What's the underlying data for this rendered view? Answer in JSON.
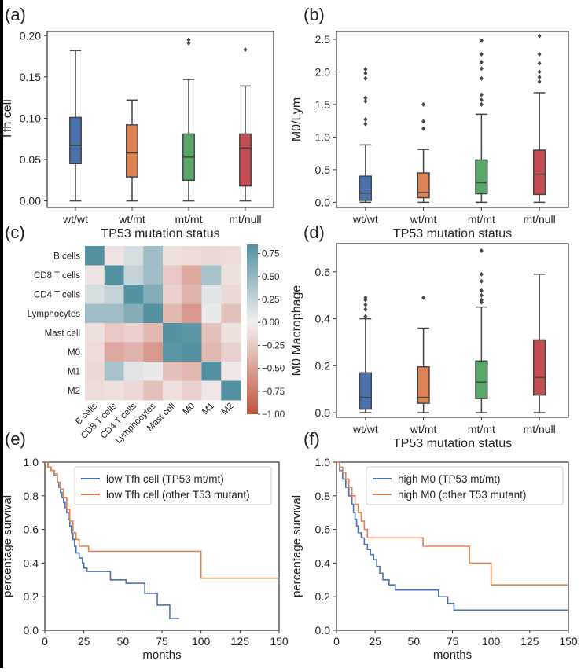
{
  "figure": {
    "panel_labels": [
      "(a)",
      "(b)",
      "(c)",
      "(d)",
      "(e)",
      "(f)"
    ],
    "colors": {
      "blue": "#4c72b0",
      "orange": "#dd8452",
      "green": "#55a868",
      "red": "#c44e52",
      "km_blue": "#4c72b0",
      "km_orange": "#dd8452"
    }
  },
  "chart_data": [
    {
      "panel": "(a)",
      "type": "box",
      "categories": [
        "wt/wt",
        "wt/mt",
        "mt/mt",
        "mt/null"
      ],
      "xlabel": "TP53 mutation status",
      "ylabel": "Tfh cell",
      "ylim": [
        -0.008,
        0.205
      ],
      "yticks": [
        0.0,
        0.05,
        0.1,
        0.15,
        0.2
      ],
      "yticklabels": [
        "0.00",
        "0.05",
        "0.10",
        "0.15",
        "0.20"
      ],
      "boxes": [
        {
          "whislo": 0.0,
          "q1": 0.045,
          "med": 0.067,
          "q3": 0.101,
          "whishi": 0.182,
          "fliers": []
        },
        {
          "whislo": 0.0,
          "q1": 0.029,
          "med": 0.058,
          "q3": 0.092,
          "whishi": 0.122,
          "fliers": []
        },
        {
          "whislo": 0.0,
          "q1": 0.025,
          "med": 0.053,
          "q3": 0.081,
          "whishi": 0.147,
          "fliers": [
            0.191,
            0.195
          ]
        },
        {
          "whislo": 0.0,
          "q1": 0.018,
          "med": 0.064,
          "q3": 0.081,
          "whishi": 0.139,
          "fliers": [
            0.183
          ]
        }
      ]
    },
    {
      "panel": "(b)",
      "type": "box",
      "categories": [
        "wt/wt",
        "wt/mt",
        "mt/mt",
        "mt/null"
      ],
      "xlabel": "TP53 mutation status",
      "ylabel": "M0/Lym",
      "ylim": [
        -0.08,
        2.62
      ],
      "yticks": [
        0.0,
        0.5,
        1.0,
        1.5,
        2.0,
        2.5
      ],
      "yticklabels": [
        "0.0",
        "0.5",
        "1.0",
        "1.5",
        "2.0",
        "2.5"
      ],
      "boxes": [
        {
          "whislo": 0.0,
          "q1": 0.03,
          "med": 0.14,
          "q3": 0.4,
          "whishi": 0.88,
          "fliers": [
            1.2,
            1.27,
            1.55,
            1.6,
            1.9,
            1.98,
            2.04
          ]
        },
        {
          "whislo": 0.0,
          "q1": 0.07,
          "med": 0.15,
          "q3": 0.45,
          "whishi": 0.81,
          "fliers": [
            1.13,
            1.24,
            1.5
          ]
        },
        {
          "whislo": 0.0,
          "q1": 0.13,
          "med": 0.3,
          "q3": 0.65,
          "whishi": 1.35,
          "fliers": [
            1.5,
            1.57,
            1.65,
            1.9,
            2.05,
            2.15,
            2.27,
            2.48
          ]
        },
        {
          "whislo": 0.0,
          "q1": 0.12,
          "med": 0.43,
          "q3": 0.8,
          "whishi": 1.68,
          "fliers": [
            1.85,
            1.92,
            2.0,
            2.13,
            2.27,
            2.55
          ]
        }
      ]
    },
    {
      "panel": "(c)",
      "type": "heatmap",
      "labels": [
        "B cells",
        "CD8 T cells",
        "CD4 T cells",
        "Lymphocytes",
        "Mast cell",
        "M0",
        "M1",
        "M2"
      ],
      "values": [
        [
          1.0,
          -0.08,
          0.15,
          0.45,
          -0.1,
          -0.12,
          -0.15,
          -0.12
        ],
        [
          -0.08,
          1.0,
          0.25,
          0.45,
          -0.25,
          -0.45,
          0.4,
          -0.1
        ],
        [
          0.15,
          0.25,
          1.0,
          0.6,
          -0.2,
          -0.38,
          0.1,
          -0.15
        ],
        [
          0.45,
          0.45,
          0.6,
          1.0,
          -0.35,
          -0.55,
          0.05,
          -0.3
        ],
        [
          -0.1,
          -0.25,
          -0.2,
          -0.35,
          1.0,
          0.8,
          -0.3,
          -0.1
        ],
        [
          -0.12,
          -0.45,
          -0.38,
          -0.55,
          0.8,
          1.0,
          -0.35,
          -0.2
        ],
        [
          -0.15,
          0.4,
          0.1,
          0.05,
          -0.3,
          -0.35,
          1.0,
          -0.05
        ],
        [
          -0.12,
          -0.1,
          -0.15,
          -0.3,
          -0.1,
          -0.2,
          -0.05,
          1.0
        ]
      ],
      "vmin": -1.0,
      "vmax": 0.85,
      "colorbar_ticks": [
        0.75,
        0.5,
        0.25,
        0.0,
        -0.25,
        -0.5,
        -0.75,
        -1.0
      ],
      "colorbar_ticklabels": [
        "0.75",
        "0.50",
        "0.25",
        "0.00",
        "−0.25",
        "−0.50",
        "−0.75",
        "−1.00"
      ]
    },
    {
      "panel": "(d)",
      "type": "box",
      "categories": [
        "wt/wt",
        "wt/mt",
        "mt/mt",
        "mt/null"
      ],
      "xlabel": "TP53 mutation status",
      "ylabel": "M0 Macrophage",
      "ylim": [
        -0.02,
        0.72
      ],
      "yticks": [
        0.0,
        0.2,
        0.4,
        0.6
      ],
      "yticklabels": [
        "0.0",
        "0.2",
        "0.4",
        "0.6"
      ],
      "boxes": [
        {
          "whislo": 0.0,
          "q1": 0.015,
          "med": 0.065,
          "q3": 0.17,
          "whishi": 0.4,
          "fliers": [
            0.41,
            0.44,
            0.46,
            0.48,
            0.49
          ]
        },
        {
          "whislo": 0.0,
          "q1": 0.04,
          "med": 0.065,
          "q3": 0.195,
          "whishi": 0.36,
          "fliers": [
            0.49
          ]
        },
        {
          "whislo": 0.0,
          "q1": 0.06,
          "med": 0.13,
          "q3": 0.22,
          "whishi": 0.45,
          "fliers": [
            0.47,
            0.48,
            0.5,
            0.52,
            0.56,
            0.59,
            0.69
          ]
        },
        {
          "whislo": 0.0,
          "q1": 0.075,
          "med": 0.15,
          "q3": 0.31,
          "whishi": 0.59,
          "fliers": []
        }
      ]
    },
    {
      "panel": "(e)",
      "type": "line",
      "xlabel": "months",
      "ylabel": "percentage survival",
      "xlim": [
        0,
        150
      ],
      "ylim": [
        0.0,
        1.0
      ],
      "xticks": [
        0,
        25,
        50,
        75,
        100,
        125,
        150
      ],
      "yticks": [
        0.0,
        0.2,
        0.4,
        0.6,
        0.8,
        1.0
      ],
      "yticklabels": [
        "0.0",
        "0.2",
        "0.4",
        "0.6",
        "0.8",
        "1.0"
      ],
      "series": [
        {
          "name": "low Tfh cell (TP53 mt/mt)",
          "color": "km_blue",
          "x": [
            0,
            2,
            4,
            6,
            8,
            9,
            10,
            11,
            12,
            13,
            14,
            15,
            16,
            17,
            18,
            19,
            20,
            22,
            24,
            25,
            27,
            32,
            34,
            42,
            52,
            64,
            72,
            76,
            80,
            86
          ],
          "y": [
            1.0,
            0.97,
            0.95,
            0.92,
            0.88,
            0.85,
            0.82,
            0.79,
            0.76,
            0.73,
            0.7,
            0.66,
            0.62,
            0.58,
            0.54,
            0.5,
            0.46,
            0.43,
            0.4,
            0.37,
            0.35,
            0.35,
            0.35,
            0.3,
            0.28,
            0.22,
            0.15,
            0.15,
            0.07,
            0.07
          ]
        },
        {
          "name": "low Tfh cell (other T53 mutant)",
          "color": "km_orange",
          "x": [
            0,
            2,
            4,
            6,
            8,
            10,
            12,
            14,
            16,
            18,
            20,
            22,
            28,
            42,
            54,
            70,
            100,
            150
          ],
          "y": [
            1.0,
            0.97,
            0.95,
            0.93,
            0.88,
            0.84,
            0.79,
            0.72,
            0.65,
            0.58,
            0.54,
            0.5,
            0.47,
            0.47,
            0.47,
            0.47,
            0.31,
            0.31
          ]
        }
      ]
    },
    {
      "panel": "(f)",
      "type": "line",
      "xlabel": "months",
      "ylabel": "percentage survival",
      "xlim": [
        0,
        150
      ],
      "ylim": [
        0.0,
        1.0
      ],
      "xticks": [
        0,
        25,
        50,
        75,
        100,
        125,
        150
      ],
      "yticks": [
        0.0,
        0.2,
        0.4,
        0.6,
        0.8,
        1.0
      ],
      "yticklabels": [
        "0.0",
        "0.2",
        "0.4",
        "0.6",
        "0.8",
        "1.0"
      ],
      "series": [
        {
          "name": "high M0 (TP53 mt/mt)",
          "color": "km_blue",
          "x": [
            0,
            2,
            4,
            6,
            8,
            10,
            11,
            12,
            13,
            14,
            16,
            18,
            20,
            22,
            24,
            26,
            28,
            30,
            34,
            38,
            46,
            50,
            66,
            72,
            76,
            150
          ],
          "y": [
            1.0,
            0.95,
            0.9,
            0.85,
            0.8,
            0.75,
            0.7,
            0.66,
            0.62,
            0.58,
            0.55,
            0.51,
            0.48,
            0.45,
            0.42,
            0.38,
            0.34,
            0.3,
            0.27,
            0.24,
            0.24,
            0.24,
            0.2,
            0.16,
            0.12,
            0.12
          ]
        },
        {
          "name": "high M0 (other T53 mutant)",
          "color": "km_orange",
          "x": [
            0,
            2,
            4,
            6,
            8,
            10,
            12,
            14,
            16,
            18,
            20,
            24,
            40,
            56,
            78,
            86,
            96,
            100,
            150
          ],
          "y": [
            1.0,
            0.97,
            0.94,
            0.9,
            0.85,
            0.8,
            0.75,
            0.7,
            0.65,
            0.6,
            0.55,
            0.55,
            0.55,
            0.5,
            0.5,
            0.4,
            0.4,
            0.27,
            0.27
          ]
        }
      ]
    }
  ]
}
